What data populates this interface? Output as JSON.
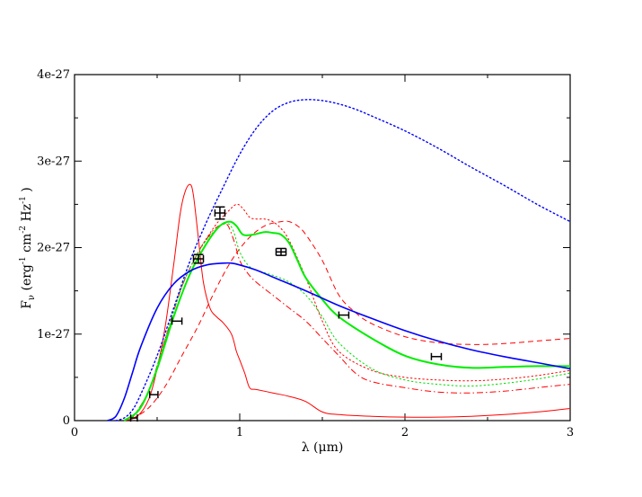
{
  "chart_data": {
    "type": "line",
    "xlabel": "λ (μm)",
    "ylabel_parts": {
      "main": "F",
      "sub_nu": "ν",
      "units_a": "(erg",
      "exp_a": "-1",
      "units_b": "cm",
      "exp_b": "-2",
      "units_c": "Hz",
      "exp_c": "-1",
      "units_d": ")"
    },
    "xlim": [
      0,
      3
    ],
    "ylim": [
      0,
      4e-27
    ],
    "xticks": [
      {
        "value": 0,
        "label": "0"
      },
      {
        "value": 1,
        "label": "1"
      },
      {
        "value": 2,
        "label": "2"
      },
      {
        "value": 3,
        "label": "3"
      }
    ],
    "yticks": [
      {
        "value": 0,
        "label": "0"
      },
      {
        "value": 1e-27,
        "label": "1e-27"
      },
      {
        "value": 2e-27,
        "label": "2e-27"
      },
      {
        "value": 3e-27,
        "label": "3e-27"
      },
      {
        "value": 4e-27,
        "label": "4e-27"
      }
    ],
    "grid": false,
    "legend": "none",
    "y_scale": 1e-27,
    "series": [
      {
        "id": "red-solid",
        "color": "#ff0000",
        "style": "solid",
        "width": 1,
        "x": [
          0.3,
          0.38,
          0.45,
          0.5,
          0.55,
          0.6,
          0.64,
          0.67,
          0.7,
          0.72,
          0.75,
          0.78,
          0.82,
          0.86,
          0.9,
          0.95,
          0.98,
          1.0,
          1.03,
          1.06,
          1.1,
          1.2,
          1.3,
          1.4,
          1.5,
          1.6,
          1.8,
          2.0,
          2.2,
          2.4,
          2.6,
          2.8,
          3.0
        ],
        "y": [
          0,
          0.05,
          0.25,
          0.6,
          1.1,
          1.8,
          2.4,
          2.65,
          2.73,
          2.6,
          2.1,
          1.6,
          1.3,
          1.2,
          1.13,
          1.0,
          0.8,
          0.7,
          0.55,
          0.38,
          0.36,
          0.32,
          0.28,
          0.22,
          0.1,
          0.07,
          0.05,
          0.04,
          0.04,
          0.05,
          0.07,
          0.1,
          0.14
        ]
      },
      {
        "id": "red-dashed",
        "color": "#ff0000",
        "style": "dashed",
        "width": 1,
        "x": [
          0.35,
          0.45,
          0.55,
          0.65,
          0.75,
          0.85,
          0.95,
          1.05,
          1.15,
          1.25,
          1.3,
          1.35,
          1.4,
          1.5,
          1.6,
          1.7,
          1.8,
          2.0,
          2.2,
          2.4,
          2.6,
          2.8,
          3.0
        ],
        "y": [
          0.02,
          0.15,
          0.4,
          0.75,
          1.1,
          1.5,
          1.85,
          2.1,
          2.25,
          2.3,
          2.3,
          2.25,
          2.15,
          1.85,
          1.45,
          1.25,
          1.12,
          0.97,
          0.9,
          0.88,
          0.89,
          0.92,
          0.95
        ]
      },
      {
        "id": "red-dotted",
        "color": "#ff0000",
        "style": "dotted",
        "width": 1,
        "x": [
          0.35,
          0.45,
          0.55,
          0.65,
          0.75,
          0.85,
          0.92,
          0.98,
          1.02,
          1.06,
          1.1,
          1.15,
          1.2,
          1.25,
          1.3,
          1.4,
          1.5,
          1.6,
          1.8,
          2.0,
          2.2,
          2.4,
          2.6,
          2.8,
          3.0
        ],
        "y": [
          0.03,
          0.35,
          0.95,
          1.55,
          1.95,
          2.25,
          2.4,
          2.5,
          2.45,
          2.35,
          2.33,
          2.33,
          2.3,
          2.22,
          2.08,
          1.65,
          1.15,
          0.8,
          0.58,
          0.5,
          0.47,
          0.46,
          0.48,
          0.52,
          0.58
        ]
      },
      {
        "id": "red-dashdot",
        "color": "#ff0000",
        "style": "dashdot",
        "width": 1,
        "x": [
          0.35,
          0.45,
          0.55,
          0.65,
          0.75,
          0.8,
          0.85,
          0.9,
          0.93,
          0.97,
          1.0,
          1.05,
          1.1,
          1.2,
          1.3,
          1.4,
          1.5,
          1.6,
          1.7,
          1.8,
          2.0,
          2.2,
          2.4,
          2.6,
          2.8,
          3.0
        ],
        "y": [
          0.03,
          0.35,
          0.95,
          1.55,
          1.95,
          2.1,
          2.22,
          2.27,
          2.25,
          2.05,
          1.85,
          1.7,
          1.6,
          1.45,
          1.3,
          1.15,
          0.95,
          0.75,
          0.55,
          0.45,
          0.38,
          0.33,
          0.32,
          0.34,
          0.38,
          0.42
        ]
      },
      {
        "id": "green-dotted",
        "color": "#00dd00",
        "style": "dotted",
        "width": 1,
        "x": [
          0.35,
          0.45,
          0.55,
          0.65,
          0.75,
          0.85,
          0.92,
          0.96,
          1.0,
          1.05,
          1.1,
          1.2,
          1.3,
          1.4,
          1.5,
          1.6,
          1.8,
          2.0,
          2.2,
          2.4,
          2.6,
          2.8,
          3.0
        ],
        "y": [
          0.03,
          0.35,
          0.95,
          1.55,
          1.95,
          2.2,
          2.28,
          2.2,
          1.95,
          1.8,
          1.74,
          1.68,
          1.6,
          1.45,
          1.2,
          0.9,
          0.6,
          0.47,
          0.42,
          0.4,
          0.43,
          0.48,
          0.55
        ]
      },
      {
        "id": "green-solid",
        "color": "#00ee00",
        "style": "solid",
        "width": 2,
        "x": [
          0.3,
          0.4,
          0.5,
          0.6,
          0.7,
          0.8,
          0.88,
          0.94,
          0.98,
          1.02,
          1.08,
          1.15,
          1.2,
          1.25,
          1.3,
          1.35,
          1.4,
          1.5,
          1.6,
          1.8,
          2.0,
          2.2,
          2.4,
          2.6,
          2.8,
          3.0
        ],
        "y": [
          0,
          0.15,
          0.6,
          1.2,
          1.7,
          2.05,
          2.25,
          2.3,
          2.25,
          2.15,
          2.15,
          2.18,
          2.17,
          2.15,
          2.05,
          1.85,
          1.65,
          1.4,
          1.2,
          0.95,
          0.75,
          0.65,
          0.61,
          0.62,
          0.63,
          0.63
        ]
      },
      {
        "id": "blue-solid",
        "color": "#0000ff",
        "style": "solid",
        "width": 1.6,
        "x": [
          0.2,
          0.25,
          0.3,
          0.35,
          0.4,
          0.5,
          0.6,
          0.7,
          0.8,
          0.9,
          0.95,
          1.0,
          1.1,
          1.2,
          1.4,
          1.6,
          1.8,
          2.0,
          2.2,
          2.4,
          2.6,
          2.8,
          3.0
        ],
        "y": [
          0,
          0.05,
          0.25,
          0.55,
          0.85,
          1.3,
          1.58,
          1.73,
          1.8,
          1.82,
          1.82,
          1.8,
          1.74,
          1.66,
          1.5,
          1.33,
          1.18,
          1.04,
          0.92,
          0.82,
          0.74,
          0.67,
          0.6
        ]
      },
      {
        "id": "blue-dotted",
        "color": "#0000ff",
        "style": "dotted",
        "width": 1.4,
        "x": [
          0.25,
          0.3,
          0.35,
          0.4,
          0.5,
          0.6,
          0.7,
          0.8,
          0.9,
          1.0,
          1.1,
          1.2,
          1.3,
          1.4,
          1.5,
          1.6,
          1.7,
          1.8,
          2.0,
          2.2,
          2.4,
          2.6,
          2.8,
          3.0
        ],
        "y": [
          0,
          0.03,
          0.12,
          0.3,
          0.75,
          1.3,
          1.85,
          2.3,
          2.7,
          3.08,
          3.38,
          3.58,
          3.68,
          3.71,
          3.7,
          3.66,
          3.6,
          3.52,
          3.35,
          3.15,
          2.93,
          2.72,
          2.5,
          2.3
        ]
      }
    ],
    "data_points": {
      "color": "#000000",
      "points": [
        {
          "x": 0.36,
          "y": 0.03,
          "xerr": 0.02
        },
        {
          "x": 0.48,
          "y": 0.3,
          "xerr": 0.025
        },
        {
          "x": 0.62,
          "y": 1.15,
          "xerr": 0.03
        },
        {
          "x": 0.75,
          "y": 1.87,
          "xerr": 0.03,
          "yerr": 0.05
        },
        {
          "x": 0.88,
          "y": 2.4,
          "xerr": 0.03,
          "yerr": 0.07
        },
        {
          "x": 1.25,
          "y": 1.95,
          "xerr": 0.03,
          "yerr": 0.04
        },
        {
          "x": 1.63,
          "y": 1.22,
          "xerr": 0.03
        },
        {
          "x": 2.19,
          "y": 0.74,
          "xerr": 0.03
        }
      ]
    }
  }
}
